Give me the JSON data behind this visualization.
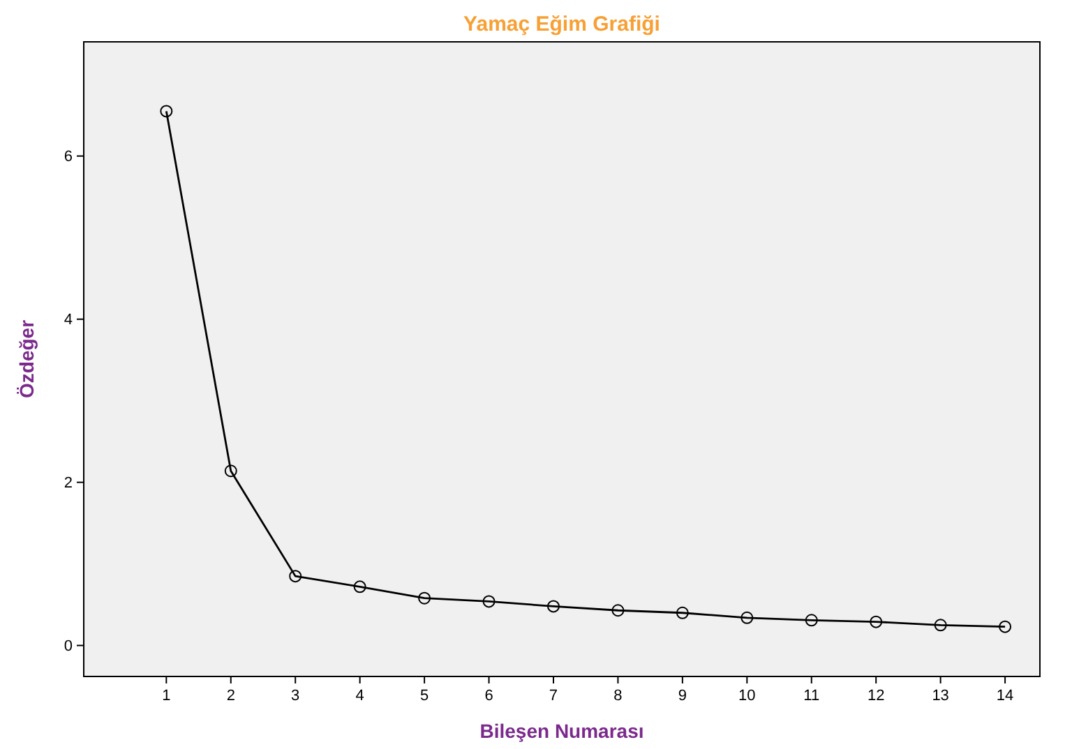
{
  "chart_data": {
    "type": "line",
    "title": "Yamaç Eğim Grafiği",
    "xlabel": "Bileşen Numarası",
    "ylabel": "Özdeğer",
    "x": [
      1,
      2,
      3,
      4,
      5,
      6,
      7,
      8,
      9,
      10,
      11,
      12,
      13,
      14
    ],
    "series": [
      {
        "color": "#000000",
        "values": [
          6.55,
          2.14,
          0.85,
          0.72,
          0.58,
          0.54,
          0.48,
          0.43,
          0.4,
          0.34,
          0.31,
          0.29,
          0.25,
          0.23
        ]
      }
    ],
    "xlim": [
      -0.28,
      14.54
    ],
    "xticks": [
      1,
      2,
      3,
      4,
      5,
      6,
      7,
      8,
      9,
      10,
      11,
      12,
      13,
      14
    ],
    "ylim": [
      -0.38,
      7.4
    ],
    "yticks": [
      0,
      2,
      4,
      6
    ],
    "grid": false,
    "marker": "circle",
    "line_style": "solid"
  }
}
